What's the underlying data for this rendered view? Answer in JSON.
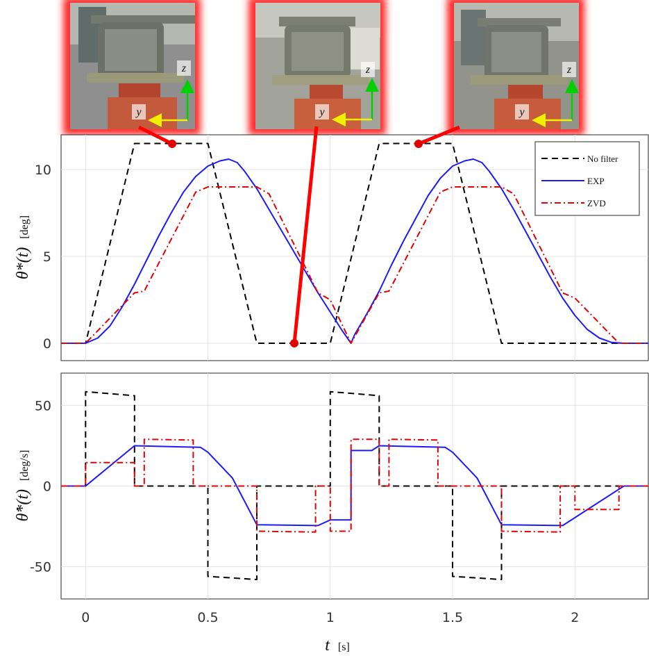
{
  "chart_data": [
    {
      "type": "line",
      "ylabel": "θ*(t)",
      "yunit": "[deg]",
      "xlim": [
        -0.1,
        2.3
      ],
      "ylim": [
        -1,
        12
      ],
      "xticks": [
        0,
        0.5,
        1,
        1.5,
        2
      ],
      "yticks": [
        0,
        5,
        10
      ],
      "xtick_labels": [
        "0",
        "0.5",
        "1",
        "1.5",
        "2"
      ],
      "ytick_labels": [
        "0",
        "5",
        "10"
      ],
      "grid": true,
      "legend": "top-right",
      "series": [
        {
          "name": "No filter",
          "color": "#000000",
          "style": "dashed",
          "points": [
            [
              -0.1,
              0
            ],
            [
              0,
              0
            ],
            [
              0.2,
              11.5
            ],
            [
              0.5,
              11.5
            ],
            [
              0.7,
              0
            ],
            [
              1.0,
              0
            ],
            [
              1.2,
              11.5
            ],
            [
              1.5,
              11.5
            ],
            [
              1.7,
              0
            ],
            [
              2.3,
              0
            ]
          ]
        },
        {
          "name": "EXP",
          "color": "#1a1aff",
          "style": "solid",
          "points": [
            [
              -0.1,
              0
            ],
            [
              0,
              0
            ],
            [
              0.05,
              0.3
            ],
            [
              0.1,
              1.0
            ],
            [
              0.15,
              2.1
            ],
            [
              0.2,
              3.4
            ],
            [
              0.25,
              4.8
            ],
            [
              0.3,
              6.2
            ],
            [
              0.35,
              7.5
            ],
            [
              0.4,
              8.7
            ],
            [
              0.45,
              9.6
            ],
            [
              0.5,
              10.2
            ],
            [
              0.55,
              10.5
            ],
            [
              0.585,
              10.6
            ],
            [
              0.62,
              10.4
            ],
            [
              0.65,
              9.9
            ],
            [
              0.7,
              8.9
            ],
            [
              0.75,
              7.7
            ],
            [
              0.8,
              6.5
            ],
            [
              0.85,
              5.3
            ],
            [
              0.9,
              4.1
            ],
            [
              0.95,
              2.9
            ],
            [
              1.0,
              1.8
            ],
            [
              1.05,
              0.7
            ],
            [
              1.085,
              0
            ],
            [
              1.1,
              0.5
            ],
            [
              1.15,
              1.7
            ],
            [
              1.2,
              3.0
            ],
            [
              1.25,
              4.5
            ],
            [
              1.3,
              5.9
            ],
            [
              1.35,
              7.2
            ],
            [
              1.4,
              8.5
            ],
            [
              1.45,
              9.5
            ],
            [
              1.5,
              10.2
            ],
            [
              1.55,
              10.5
            ],
            [
              1.585,
              10.6
            ],
            [
              1.62,
              10.4
            ],
            [
              1.65,
              9.9
            ],
            [
              1.7,
              8.9
            ],
            [
              1.75,
              7.7
            ],
            [
              1.8,
              6.4
            ],
            [
              1.85,
              5.1
            ],
            [
              1.9,
              3.8
            ],
            [
              1.95,
              2.6
            ],
            [
              2.0,
              1.6
            ],
            [
              2.05,
              0.8
            ],
            [
              2.1,
              0.3
            ],
            [
              2.15,
              0.05
            ],
            [
              2.2,
              0
            ],
            [
              2.3,
              0
            ]
          ]
        },
        {
          "name": "ZVD",
          "color": "#e60000",
          "style": "dashdot",
          "points": [
            [
              -0.1,
              0
            ],
            [
              0,
              0
            ],
            [
              0.2,
              2.9
            ],
            [
              0.24,
              3.0
            ],
            [
              0.45,
              8.7
            ],
            [
              0.5,
              9.0
            ],
            [
              0.7,
              9.0
            ],
            [
              0.75,
              8.6
            ],
            [
              0.95,
              2.9
            ],
            [
              1.0,
              2.5
            ],
            [
              1.085,
              0
            ],
            [
              1.2,
              2.9
            ],
            [
              1.24,
              3.0
            ],
            [
              1.45,
              8.7
            ],
            [
              1.5,
              9.0
            ],
            [
              1.7,
              9.0
            ],
            [
              1.75,
              8.6
            ],
            [
              1.95,
              2.9
            ],
            [
              2.0,
              2.6
            ],
            [
              2.18,
              0
            ],
            [
              2.3,
              0
            ]
          ]
        }
      ]
    },
    {
      "type": "line",
      "xlabel": "t",
      "xunit": "[s]",
      "ylabel": "θ̇*(t)",
      "yunit": "[deg/s]",
      "xlim": [
        -0.1,
        2.3
      ],
      "ylim": [
        -70,
        70
      ],
      "xticks": [
        0,
        0.5,
        1,
        1.5,
        2
      ],
      "yticks": [
        -50,
        0,
        50
      ],
      "xtick_labels": [
        "0",
        "0.5",
        "1",
        "1.5",
        "2"
      ],
      "ytick_labels": [
        "-50",
        "0",
        "50"
      ],
      "grid": true,
      "series": [
        {
          "name": "No filter",
          "color": "#000000",
          "style": "dashed",
          "points": [
            [
              -0.1,
              0
            ],
            [
              0,
              0
            ],
            [
              0,
              58.5
            ],
            [
              0.2,
              56
            ],
            [
              0.2,
              0
            ],
            [
              0.5,
              0
            ],
            [
              0.5,
              -56
            ],
            [
              0.7,
              -58
            ],
            [
              0.7,
              0
            ],
            [
              1.0,
              0
            ],
            [
              1.0,
              58.5
            ],
            [
              1.2,
              56
            ],
            [
              1.2,
              0
            ],
            [
              1.5,
              0
            ],
            [
              1.5,
              -56
            ],
            [
              1.7,
              -58
            ],
            [
              1.7,
              0
            ],
            [
              2.3,
              0
            ]
          ]
        },
        {
          "name": "EXP",
          "color": "#1a1aff",
          "style": "solid",
          "points": [
            [
              -0.1,
              0
            ],
            [
              0,
              0
            ],
            [
              0.2,
              25
            ],
            [
              0.47,
              24
            ],
            [
              0.5,
              21
            ],
            [
              0.6,
              5
            ],
            [
              0.7,
              -24
            ],
            [
              0.95,
              -24.5
            ],
            [
              1.0,
              -21
            ],
            [
              1.085,
              -21
            ],
            [
              1.085,
              22
            ],
            [
              1.17,
              22
            ],
            [
              1.2,
              25
            ],
            [
              1.47,
              24
            ],
            [
              1.5,
              21
            ],
            [
              1.6,
              5
            ],
            [
              1.7,
              -24
            ],
            [
              1.95,
              -24.5
            ],
            [
              2.2,
              0
            ],
            [
              2.3,
              0
            ]
          ]
        },
        {
          "name": "ZVD",
          "color": "#e60000",
          "style": "dashdot",
          "points": [
            [
              -0.1,
              0
            ],
            [
              0,
              0
            ],
            [
              0,
              14.5
            ],
            [
              0.2,
              14.5
            ],
            [
              0.2,
              0
            ],
            [
              0.24,
              0
            ],
            [
              0.24,
              29
            ],
            [
              0.44,
              28.5
            ],
            [
              0.44,
              0
            ],
            [
              0.7,
              0
            ],
            [
              0.7,
              -28
            ],
            [
              0.94,
              -28.5
            ],
            [
              0.94,
              0
            ],
            [
              1.0,
              0
            ],
            [
              1.0,
              -28
            ],
            [
              1.085,
              -28
            ],
            [
              1.085,
              29
            ],
            [
              1.2,
              29
            ],
            [
              1.2,
              0
            ],
            [
              1.24,
              0
            ],
            [
              1.24,
              29
            ],
            [
              1.44,
              28.5
            ],
            [
              1.44,
              0
            ],
            [
              1.7,
              0
            ],
            [
              1.7,
              -28
            ],
            [
              1.94,
              -28.5
            ],
            [
              1.94,
              0
            ],
            [
              2.0,
              0
            ],
            [
              2.0,
              -14.5
            ],
            [
              2.18,
              -14.5
            ],
            [
              2.18,
              0
            ],
            [
              2.3,
              0
            ]
          ]
        }
      ]
    }
  ],
  "photo_labels": {
    "z": "z",
    "y": "y"
  }
}
